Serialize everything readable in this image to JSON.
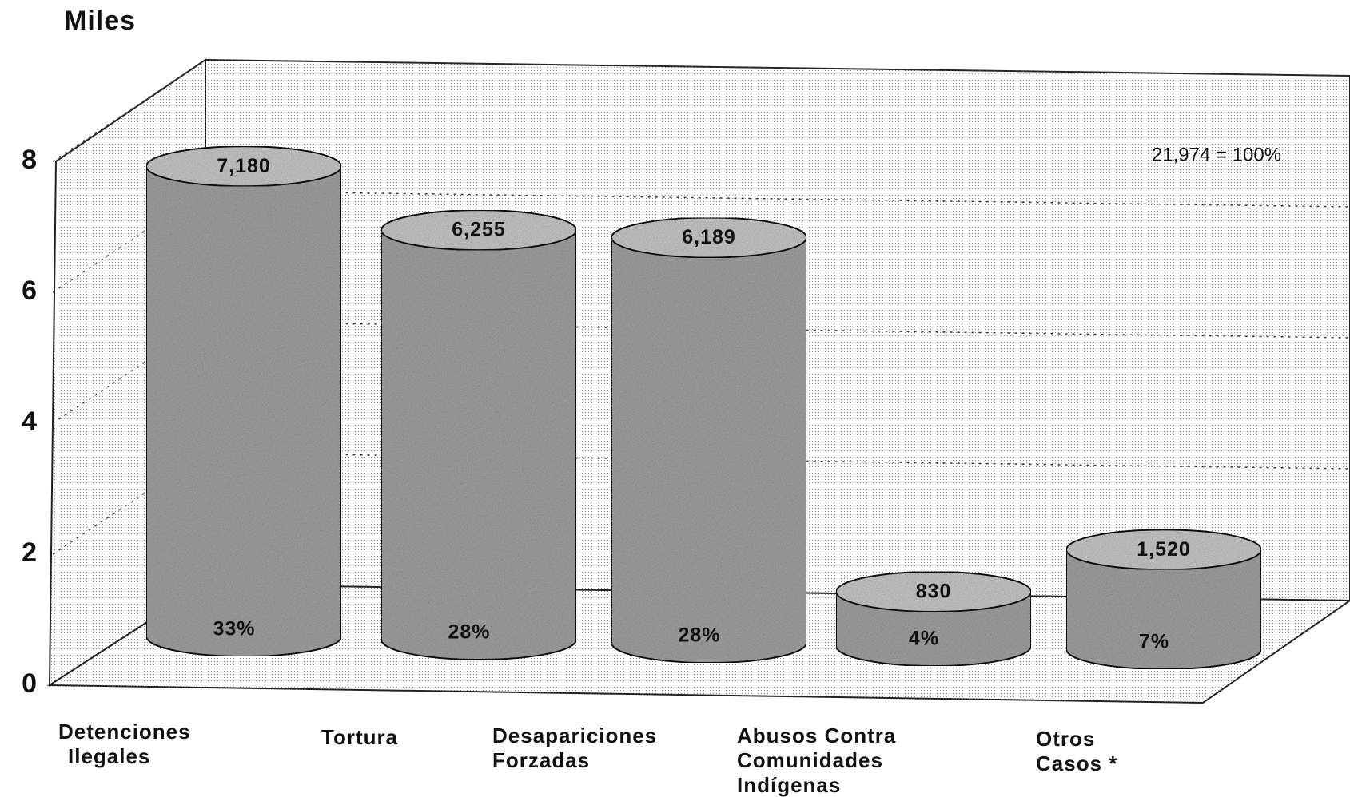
{
  "chart_data": {
    "type": "bar3d",
    "title": "Miles",
    "annotation": "21,974 = 100%",
    "categories": [
      [
        "Detenciones",
        "Ilegales"
      ],
      [
        "Tortura"
      ],
      [
        "Desapariciones",
        "Forzadas"
      ],
      [
        "Abusos Contra",
        "Comunidades",
        "Indígenas"
      ],
      [
        "Otros",
        "Casos *"
      ]
    ],
    "values": [
      7.18,
      6.255,
      6.189,
      0.83,
      1.52
    ],
    "value_labels": [
      "7,180",
      "6,255",
      "6,189",
      "830",
      "1,520"
    ],
    "share_labels": [
      "33%",
      "28%",
      "28%",
      "4%",
      "7%"
    ],
    "color": "#a8a8a8",
    "ylim": [
      0,
      8
    ],
    "yticks": [
      0,
      2,
      4,
      6,
      8
    ],
    "grid": true
  }
}
